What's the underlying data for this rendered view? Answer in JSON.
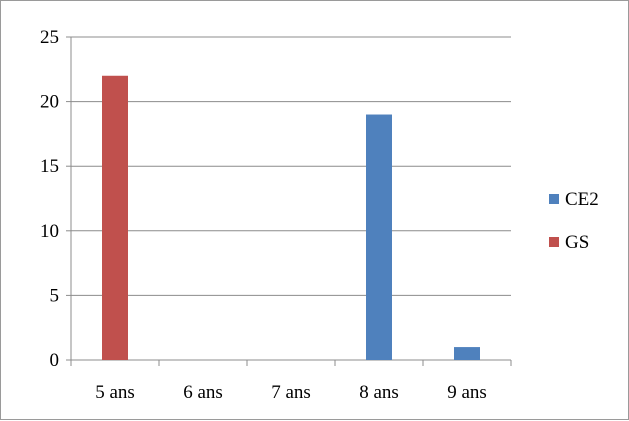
{
  "chart_data": {
    "type": "bar",
    "categories": [
      "5 ans",
      "6 ans",
      "7 ans",
      "8 ans",
      "9 ans"
    ],
    "series": [
      {
        "name": "CE2",
        "color": "#4f81bd",
        "values": [
          0,
          0,
          0,
          19,
          1
        ]
      },
      {
        "name": "GS",
        "color": "#c0504d",
        "values": [
          22,
          0,
          0,
          0,
          0
        ]
      }
    ],
    "title": "",
    "xlabel": "",
    "ylabel": "",
    "ylim": [
      0,
      25
    ],
    "yticks": [
      "0",
      "5",
      "10",
      "15",
      "20",
      "25"
    ],
    "grid": true,
    "legend": "right"
  }
}
